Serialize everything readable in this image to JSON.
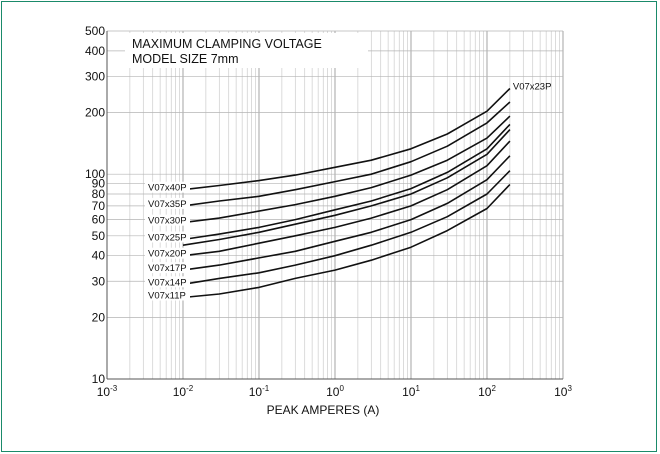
{
  "frame_color": "#1a8a6a",
  "chart_data": {
    "type": "line",
    "title": "MAXIMUM CLAMPING VOLTAGE",
    "subtitle": "MODEL SIZE 7mm",
    "xlabel": "PEAK AMPERES (A)",
    "ylabel": "",
    "x_scale": "log",
    "y_scale": "log",
    "xlim": [
      0.001,
      1000
    ],
    "ylim": [
      10,
      500
    ],
    "grid": true,
    "x_tick_labels": [
      {
        "base": "10",
        "exp": "-3",
        "value": 0.001
      },
      {
        "base": "10",
        "exp": "-2",
        "value": 0.01
      },
      {
        "base": "10",
        "exp": "-1",
        "value": 0.1
      },
      {
        "base": "10",
        "exp": "0",
        "value": 1
      },
      {
        "base": "10",
        "exp": "1",
        "value": 10
      },
      {
        "base": "10",
        "exp": "2",
        "value": 100
      },
      {
        "base": "10",
        "exp": "3",
        "value": 1000
      }
    ],
    "y_tick_labels": [
      {
        "label": "10",
        "value": 10
      },
      {
        "label": "20",
        "value": 20
      },
      {
        "label": "30",
        "value": 30
      },
      {
        "label": "40",
        "value": 40
      },
      {
        "label": "50",
        "value": 50
      },
      {
        "label": "60",
        "value": 60
      },
      {
        "label": "70",
        "value": 70
      },
      {
        "label": "80",
        "value": 80
      },
      {
        "label": "90",
        "value": 90
      },
      {
        "label": "100",
        "value": 100
      },
      {
        "label": "200",
        "value": 200
      },
      {
        "label": "300",
        "value": 300
      },
      {
        "label": "400",
        "value": 400
      },
      {
        "label": "500",
        "value": 500
      }
    ],
    "series": [
      {
        "name": "V07x40P",
        "x": [
          0.01,
          0.03,
          0.1,
          0.3,
          1,
          3,
          10,
          30,
          100,
          200
        ],
        "y": [
          84,
          88,
          93,
          99,
          108,
          117,
          133,
          157,
          203,
          262
        ]
      },
      {
        "name": "V07x35P",
        "x": [
          0.01,
          0.03,
          0.1,
          0.3,
          1,
          3,
          10,
          30,
          100,
          200
        ],
        "y": [
          70,
          74,
          78,
          84,
          92,
          100,
          115,
          137,
          178,
          225
        ]
      },
      {
        "name": "V07x30P",
        "x": [
          0.01,
          0.03,
          0.1,
          0.3,
          1,
          3,
          10,
          30,
          100,
          200
        ],
        "y": [
          58,
          61,
          66,
          71,
          78,
          86,
          99,
          117,
          150,
          192
        ]
      },
      {
        "name": "V07x25P",
        "x": [
          0.01,
          0.03,
          0.1,
          0.3,
          1,
          3,
          10,
          30,
          100,
          200
        ],
        "y": [
          48,
          51,
          55,
          60,
          67,
          74,
          85,
          102,
          133,
          175
        ]
      },
      {
        "name": "V07x23P",
        "x": [
          0.01,
          0.03,
          0.1,
          0.3,
          1,
          3,
          10,
          30,
          100,
          200
        ],
        "y": [
          45,
          48,
          52,
          57,
          63,
          70,
          80,
          96,
          125,
          165
        ]
      },
      {
        "name": "V07x20P",
        "x": [
          0.01,
          0.03,
          0.1,
          0.3,
          1,
          3,
          10,
          30,
          100,
          200
        ],
        "y": [
          40,
          42,
          46,
          50,
          55,
          61,
          70,
          84,
          110,
          145
        ]
      },
      {
        "name": "V07x17P",
        "x": [
          0.01,
          0.03,
          0.1,
          0.3,
          1,
          3,
          10,
          30,
          100,
          200
        ],
        "y": [
          34,
          36,
          39,
          42,
          47,
          52,
          60,
          72,
          94,
          123
        ]
      },
      {
        "name": "V07x14P",
        "x": [
          0.01,
          0.03,
          0.1,
          0.3,
          1,
          3,
          10,
          30,
          100,
          200
        ],
        "y": [
          29,
          31,
          33,
          36,
          40,
          45,
          52,
          62,
          80,
          104
        ]
      },
      {
        "name": "V07x11P",
        "x": [
          0.01,
          0.03,
          0.1,
          0.3,
          1,
          3,
          10,
          30,
          100,
          200
        ],
        "y": [
          25,
          26,
          28,
          31,
          34,
          38,
          44,
          53,
          68,
          89
        ]
      }
    ]
  }
}
